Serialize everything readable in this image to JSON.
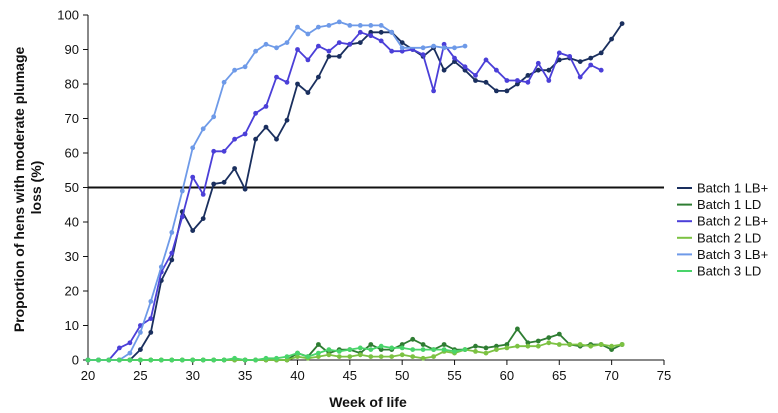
{
  "chart_data": {
    "type": "line",
    "xlabel": "Week of life",
    "ylabel_lines": [
      "Proportion of hens with moderate plumage",
      "loss (%)"
    ],
    "xlim": [
      20,
      75
    ],
    "ylim": [
      0,
      100
    ],
    "x_ticks": [
      "20",
      "25",
      "30",
      "35",
      "40",
      "45",
      "50",
      "55",
      "60",
      "65",
      "70",
      "75"
    ],
    "y_ticks": [
      "0",
      "10",
      "20",
      "30",
      "40",
      "50",
      "60",
      "70",
      "80",
      "90",
      "100"
    ],
    "reference_line": {
      "y": 50,
      "color": "#111111"
    },
    "legend_position": "right",
    "series": [
      {
        "name": "Batch 1 LB+",
        "color": "#1a2f5e",
        "x": [
          20,
          21,
          22,
          23,
          24,
          25,
          26,
          27,
          28,
          29,
          30,
          31,
          32,
          33,
          34,
          35,
          36,
          37,
          38,
          39,
          40,
          41,
          42,
          43,
          44,
          45,
          46,
          47,
          48,
          49,
          50,
          51,
          52,
          53,
          54,
          55,
          56,
          57,
          58,
          59,
          60,
          61,
          62,
          63,
          64,
          65,
          66,
          67,
          68,
          69,
          70,
          71
        ],
        "y": [
          0,
          0,
          0,
          0,
          0,
          3,
          8,
          23,
          29,
          43,
          37.5,
          41,
          51,
          51.5,
          55.5,
          49.5,
          64,
          67.5,
          64,
          69.5,
          80,
          77.5,
          82,
          88,
          88,
          91.5,
          92,
          95,
          95,
          95,
          92,
          90,
          88,
          90.5,
          84,
          86.5,
          84,
          81,
          80.5,
          78,
          78,
          80,
          82.5,
          84,
          84,
          87,
          87.5,
          86.5,
          87.5,
          89,
          93,
          97.5
        ]
      },
      {
        "name": "Batch 1 LD",
        "color": "#2e7d32",
        "x": [
          20,
          21,
          22,
          23,
          24,
          25,
          26,
          27,
          28,
          29,
          30,
          31,
          32,
          33,
          34,
          35,
          36,
          37,
          38,
          39,
          40,
          41,
          42,
          43,
          44,
          45,
          46,
          47,
          48,
          49,
          50,
          51,
          52,
          53,
          54,
          55,
          56,
          57,
          58,
          59,
          60,
          61,
          62,
          63,
          64,
          65,
          66,
          67,
          68,
          69,
          70,
          71
        ],
        "y": [
          0,
          0,
          0,
          0,
          0,
          0,
          0,
          0,
          0,
          0,
          0,
          0,
          0,
          0,
          0,
          0,
          0,
          0,
          0,
          0,
          2,
          1,
          4.5,
          2,
          3,
          3,
          2,
          4.5,
          3,
          3,
          4.5,
          6,
          4.5,
          3,
          4.5,
          3,
          3,
          4,
          3.5,
          4,
          4.5,
          9,
          5,
          5.5,
          6.5,
          7.5,
          4.5,
          4,
          4.5,
          4.5,
          3,
          4.5
        ]
      },
      {
        "name": "Batch 2 LB+",
        "color": "#4b3fd8",
        "x": [
          20,
          21,
          22,
          23,
          24,
          25,
          26,
          27,
          28,
          29,
          30,
          31,
          32,
          33,
          34,
          35,
          36,
          37,
          38,
          39,
          40,
          41,
          42,
          43,
          44,
          45,
          46,
          47,
          48,
          49,
          50,
          51,
          52,
          53,
          54,
          55,
          56,
          57,
          58,
          59,
          60,
          61,
          62,
          63,
          64,
          65,
          66,
          67,
          68,
          69
        ],
        "y": [
          0,
          0,
          0,
          3.5,
          5,
          10,
          12,
          25.5,
          31,
          41.5,
          53,
          48,
          60.5,
          60.5,
          64,
          65.5,
          71.5,
          73.5,
          82,
          80.5,
          90,
          87,
          91,
          89.5,
          92,
          91.5,
          95,
          94,
          92.5,
          89.5,
          89.5,
          90,
          88.5,
          78,
          91.5,
          87.5,
          85,
          82.5,
          87,
          84,
          81,
          81,
          80.5,
          86,
          81,
          89,
          88,
          82,
          85.5,
          84
        ]
      },
      {
        "name": "Batch 2 LD",
        "color": "#7cc242",
        "x": [
          20,
          21,
          22,
          23,
          24,
          25,
          26,
          27,
          28,
          29,
          30,
          31,
          32,
          33,
          34,
          35,
          36,
          37,
          38,
          39,
          40,
          41,
          42,
          43,
          44,
          45,
          46,
          47,
          48,
          49,
          50,
          51,
          52,
          53,
          54,
          55,
          56,
          57,
          58,
          59,
          60,
          61,
          62,
          63,
          64,
          65,
          66,
          67,
          68,
          69,
          70,
          71
        ],
        "y": [
          0,
          0,
          0,
          0,
          0,
          0,
          0,
          0,
          0,
          0,
          0,
          0,
          0,
          0,
          0,
          0,
          0,
          0,
          0,
          0,
          1,
          0.5,
          1,
          1.5,
          1,
          1,
          1.5,
          1,
          1,
          1,
          1.5,
          1,
          0.5,
          1,
          2.5,
          2,
          3,
          2.5,
          2,
          3,
          3.5,
          4,
          4,
          4,
          5,
          4.5,
          4.5,
          4.5,
          4,
          4.5,
          4,
          4.5
        ]
      },
      {
        "name": "Batch 3 LB+",
        "color": "#6e9ae8",
        "x": [
          20,
          21,
          22,
          23,
          24,
          25,
          26,
          27,
          28,
          29,
          30,
          31,
          32,
          33,
          34,
          35,
          36,
          37,
          38,
          39,
          40,
          41,
          42,
          43,
          44,
          45,
          46,
          47,
          48,
          49,
          50,
          52,
          53,
          54,
          55,
          56
        ],
        "y": [
          0,
          0,
          0,
          0,
          2,
          8,
          17,
          27,
          37,
          49,
          61.5,
          67,
          70.5,
          80.5,
          84,
          85,
          89.5,
          91.5,
          90.5,
          92,
          96.5,
          94.5,
          96.5,
          97,
          98,
          97,
          97,
          97,
          97,
          95,
          90.5,
          90.5,
          91,
          90.5,
          90.5,
          91
        ]
      },
      {
        "name": "Batch 3 LD",
        "color": "#49d46a",
        "x": [
          20,
          21,
          22,
          23,
          24,
          25,
          26,
          27,
          28,
          29,
          30,
          31,
          32,
          33,
          34,
          35,
          36,
          37,
          38,
          39,
          40,
          41,
          42,
          43,
          44,
          45,
          46,
          47,
          48,
          49,
          50,
          51,
          52,
          53,
          54,
          55,
          56
        ],
        "y": [
          0,
          0,
          0,
          0,
          0,
          0,
          0,
          0,
          0,
          0,
          0,
          0,
          0,
          0,
          0.5,
          0,
          0,
          0.5,
          0.5,
          1,
          2,
          1,
          2,
          3,
          2.5,
          3,
          3.5,
          3,
          4,
          3.5,
          3.5,
          3,
          3,
          3,
          3,
          2.5,
          3
        ]
      }
    ]
  }
}
